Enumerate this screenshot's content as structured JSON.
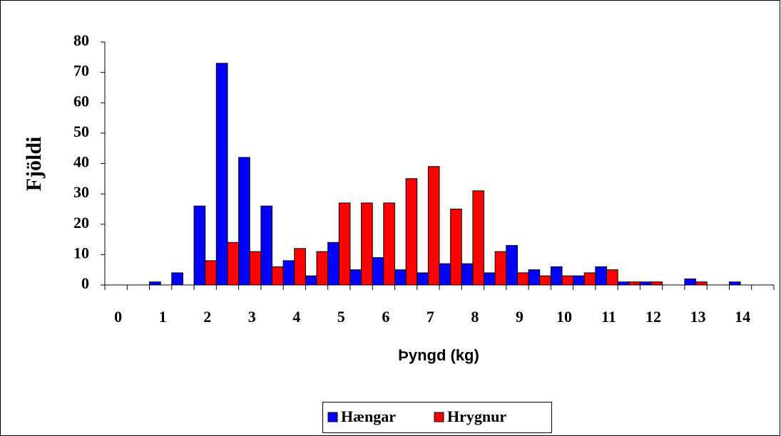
{
  "chart_data": {
    "type": "bar",
    "x_label": "Þyngd (kg)",
    "y_label": "Fjöldi",
    "categories": [
      "0",
      null,
      "1",
      null,
      "2",
      null,
      "3",
      null,
      "4",
      null,
      "5",
      null,
      "6",
      null,
      "7",
      null,
      "8",
      null,
      "9",
      null,
      "10",
      null,
      "11",
      null,
      "12",
      null,
      "13",
      null,
      "14",
      null
    ],
    "series": [
      {
        "name": "Hængar",
        "color": "#0000ff",
        "values": [
          0,
          0,
          1,
          4,
          26,
          73,
          42,
          26,
          8,
          3,
          14,
          5,
          9,
          5,
          4,
          7,
          7,
          4,
          13,
          5,
          6,
          3,
          6,
          1,
          1,
          0,
          2,
          0,
          1,
          0
        ]
      },
      {
        "name": "Hrygnur",
        "color": "#ff0000",
        "values": [
          0,
          0,
          0,
          0,
          8,
          14,
          11,
          6,
          12,
          11,
          27,
          27,
          27,
          35,
          39,
          25,
          31,
          11,
          4,
          3,
          3,
          4,
          5,
          1,
          1,
          0,
          1,
          0,
          0,
          0
        ]
      }
    ],
    "ylim": [
      0,
      80
    ],
    "yticks": [
      0,
      10,
      20,
      30,
      40,
      50,
      60,
      70,
      80
    ],
    "grid": false
  }
}
